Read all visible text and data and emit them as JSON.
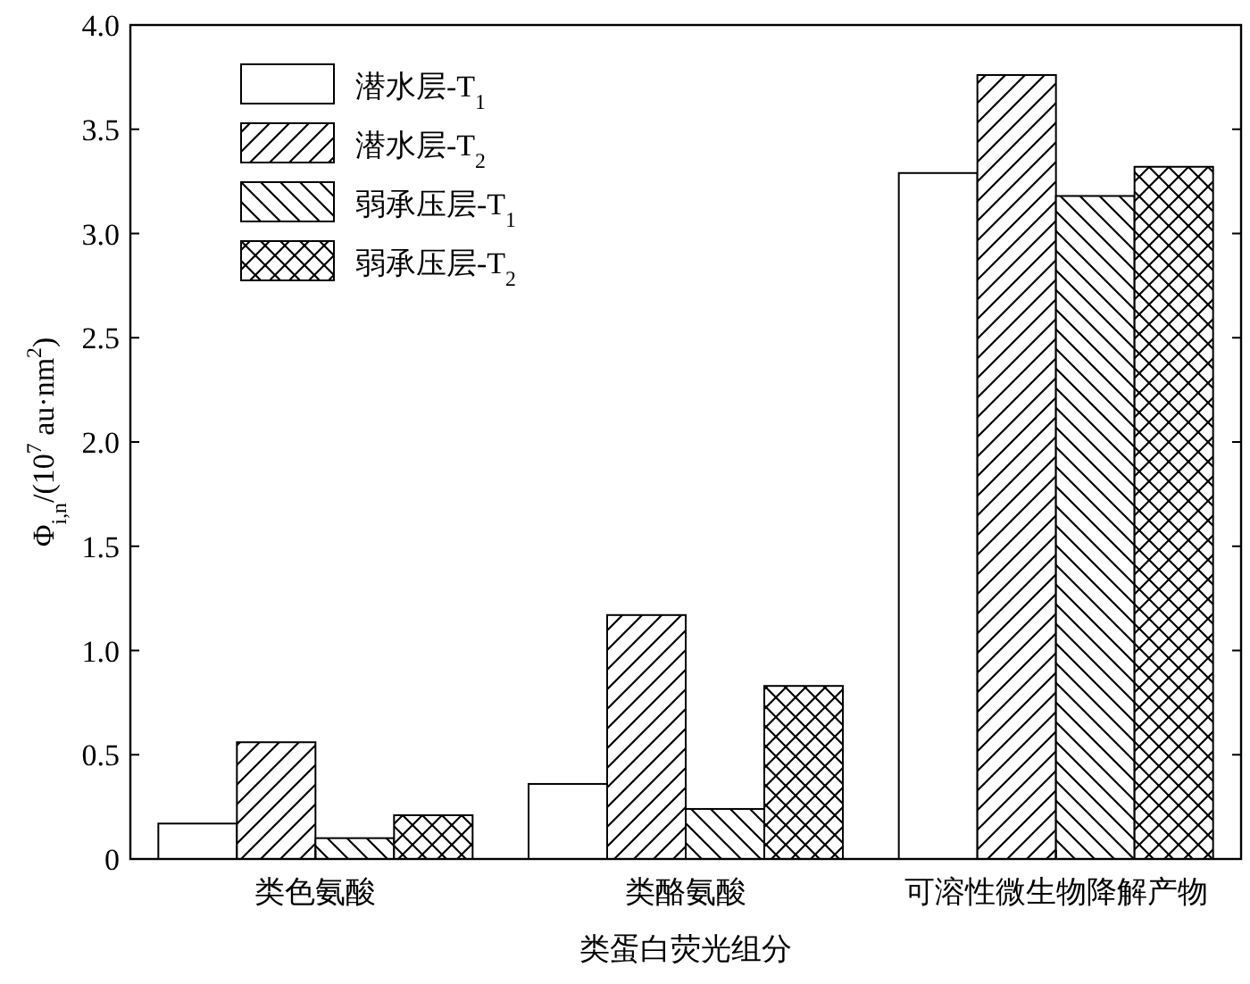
{
  "chart_data": {
    "type": "bar",
    "xlabel": "类蛋白荧光组分",
    "ylabel": "Φ$_{i,n}$/(10$^{7}$ au·nm$^{2}$)",
    "categories": [
      "类色氨酸",
      "类酪氨酸",
      "可溶性微生物降解产物"
    ],
    "series": [
      {
        "name": "潜水层-T$_{1}$",
        "color": "#000000",
        "values": [
          0.17,
          0.36,
          3.29
        ]
      },
      {
        "name": "潜水层-T$_{2}$",
        "color": "#000000",
        "values": [
          0.56,
          1.17,
          3.76
        ]
      },
      {
        "name": "弱承压层-T$_{1}$",
        "color": "#000000",
        "values": [
          0.1,
          0.24,
          3.18
        ]
      },
      {
        "name": "弱承压层-T$_{2}$",
        "color": "#000000",
        "values": [
          0.21,
          0.83,
          3.32
        ]
      }
    ],
    "ylim": [
      0,
      4
    ],
    "yticks": [
      0,
      {
        "value": 0.5,
        "label": "0.5"
      },
      {
        "value": 1,
        "label": "1.0"
      },
      {
        "value": 1.5,
        "label": "1.5"
      },
      {
        "value": 2,
        "label": "2.0"
      },
      {
        "value": 2.5,
        "label": "2.5"
      },
      {
        "value": 3,
        "label": "3.0"
      },
      {
        "value": 3.5,
        "label": "3.5"
      },
      {
        "value": 4,
        "label": "4.0"
      }
    ],
    "grid": false,
    "legend": "top left"
  }
}
